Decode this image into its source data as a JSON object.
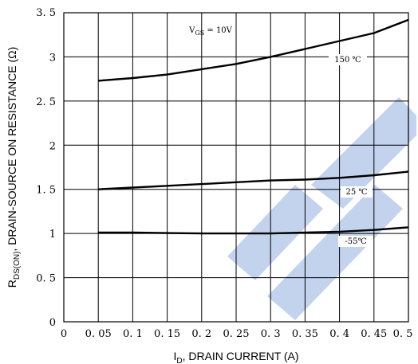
{
  "chart_data": {
    "type": "line",
    "xlabel": {
      "main": "I",
      "sub": "D",
      "rest": ", DRAIN CURRENT (A)"
    },
    "ylabel": {
      "main": "R",
      "sub": "DS(ON)",
      "rest": ", DRAIN-SOURCE ON RESISTANCE (Ω)"
    },
    "xlim": [
      0,
      0.5
    ],
    "ylim": [
      0,
      3.5
    ],
    "x_ticks": [
      0,
      0.05,
      0.1,
      0.15,
      0.2,
      0.25,
      0.3,
      0.35,
      0.4,
      0.45,
      0.5
    ],
    "x_tick_labels": [
      "0",
      "0. 05",
      "0. 1",
      "0. 15",
      "0. 2",
      "0. 25",
      "0. 3",
      "0. 35",
      "0. 4",
      "0. 45",
      "0. 5"
    ],
    "y_ticks": [
      0,
      0.5,
      1,
      1.5,
      2,
      2.5,
      3,
      3.5
    ],
    "y_tick_labels": [
      "0",
      "0. 5",
      "1",
      "1. 5",
      "2",
      "2. 5",
      "3",
      "3. 5"
    ],
    "grid": true,
    "annotations": {
      "vgs": {
        "main": "V",
        "sub": "GS",
        "rest": " = 10V"
      }
    },
    "series": [
      {
        "name": "150 ℃",
        "x": [
          0.05,
          0.1,
          0.15,
          0.2,
          0.25,
          0.3,
          0.35,
          0.4,
          0.45,
          0.5
        ],
        "y": [
          2.73,
          2.76,
          2.8,
          2.86,
          2.92,
          3.0,
          3.09,
          3.18,
          3.27,
          3.42
        ]
      },
      {
        "name": "25 ℃",
        "x": [
          0.05,
          0.1,
          0.15,
          0.2,
          0.25,
          0.3,
          0.35,
          0.4,
          0.45,
          0.5
        ],
        "y": [
          1.5,
          1.52,
          1.54,
          1.56,
          1.58,
          1.6,
          1.61,
          1.63,
          1.66,
          1.7
        ]
      },
      {
        "name": "-55℃",
        "x": [
          0.05,
          0.1,
          0.15,
          0.2,
          0.25,
          0.3,
          0.35,
          0.4,
          0.45,
          0.5
        ],
        "y": [
          1.01,
          1.01,
          1.005,
          1.0,
          1.0,
          1.0,
          1.01,
          1.02,
          1.04,
          1.07
        ]
      }
    ],
    "watermark_color": "#c3d3ee",
    "line_color": "#000000"
  }
}
